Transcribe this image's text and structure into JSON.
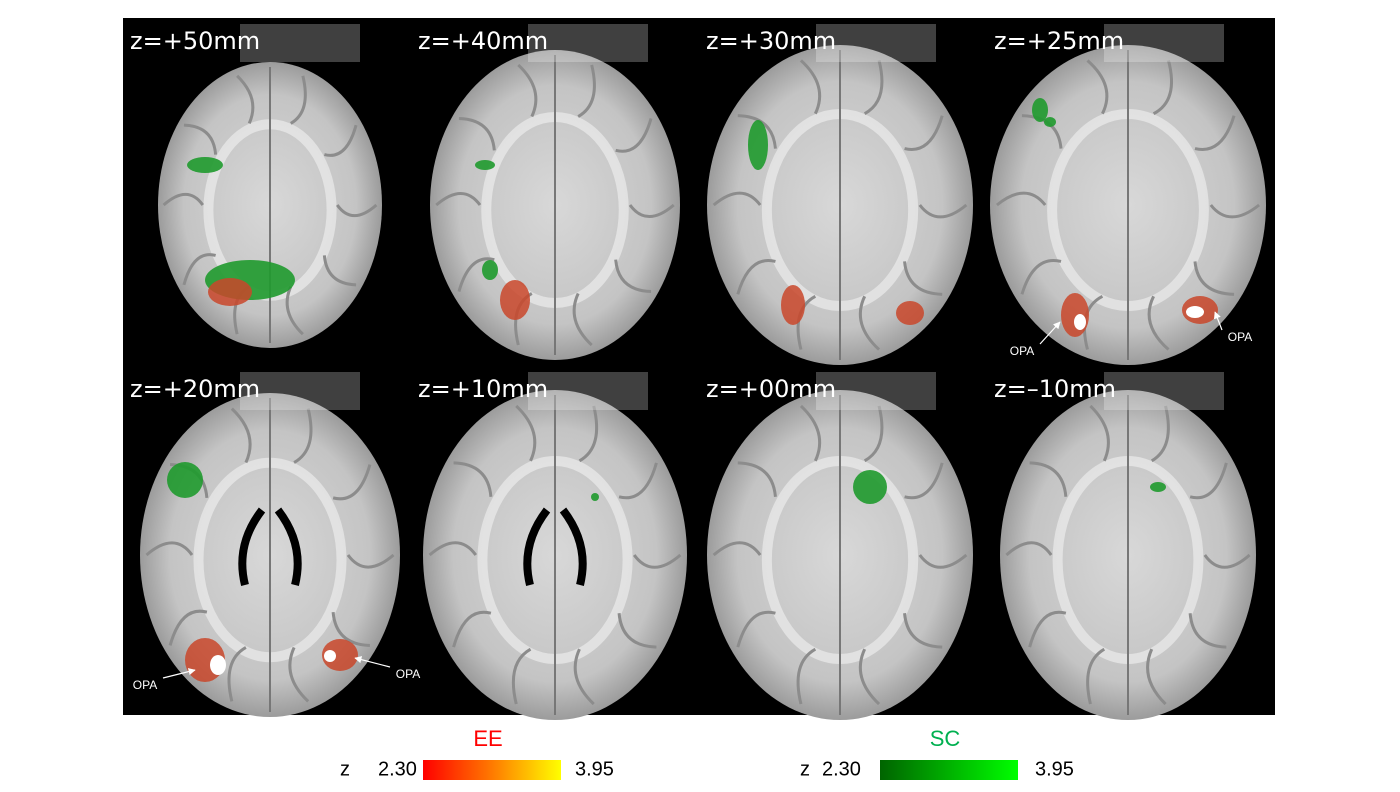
{
  "slices": [
    {
      "label": "z=+50mm",
      "annotations": []
    },
    {
      "label": "z=+40mm",
      "annotations": []
    },
    {
      "label": "z=+30mm",
      "annotations": []
    },
    {
      "label": "z=+25mm",
      "annotations": [
        "OPA",
        "OPA"
      ]
    },
    {
      "label": "z=+20mm",
      "annotations": [
        "OPA",
        "OPA"
      ]
    },
    {
      "label": "z=+10mm",
      "annotations": []
    },
    {
      "label": "z=+00mm",
      "annotations": []
    },
    {
      "label": "z=–10mm",
      "annotations": []
    }
  ],
  "legend": [
    {
      "title": "EE",
      "axis_label": "z",
      "min_label": "2.30",
      "max_label": "3.95"
    },
    {
      "title": "SC",
      "axis_label": "z",
      "min_label": "2.30",
      "max_label": "3.95"
    }
  ]
}
